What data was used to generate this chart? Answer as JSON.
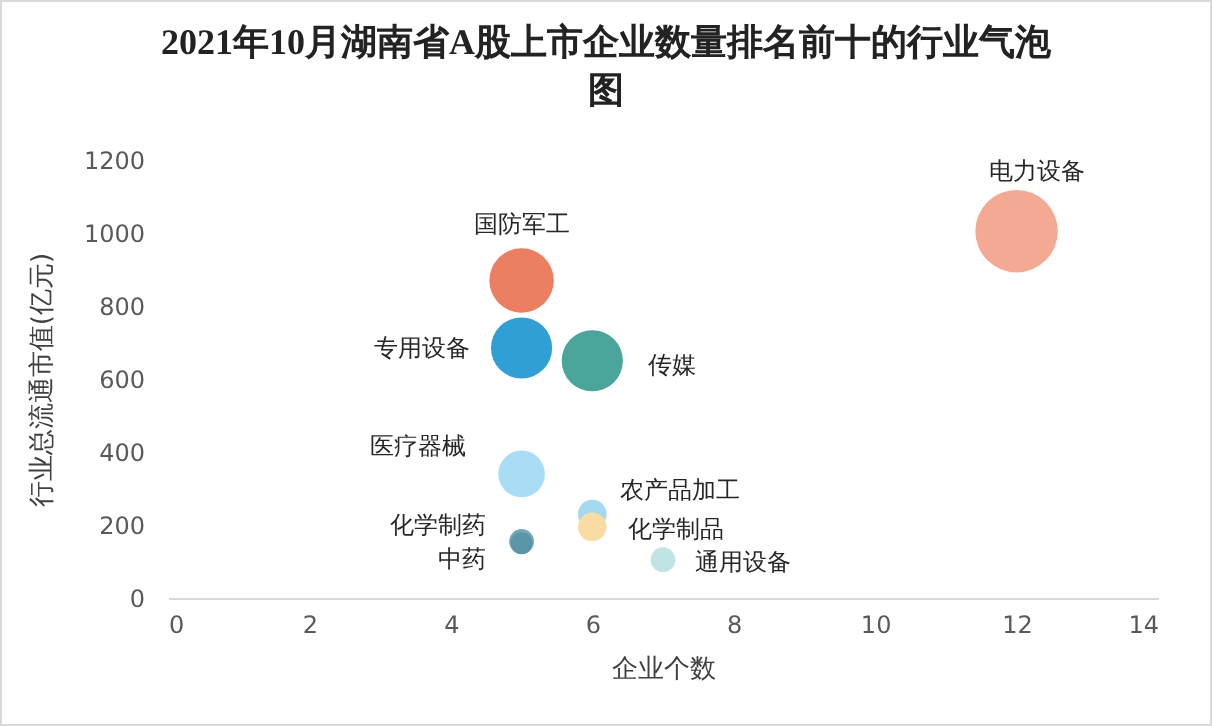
{
  "chart_data": {
    "type": "bubble",
    "title": "2021年10月湖南省A股上市企业数量排名前十的行业气泡图",
    "xlabel": "企业个数",
    "ylabel": "行业总流通市值(亿元)",
    "xlim": [
      0,
      14
    ],
    "xticks": [
      0,
      2,
      4,
      6,
      8,
      10,
      12,
      14
    ],
    "ylim": [
      0,
      1200
    ],
    "yticks": [
      0,
      200,
      400,
      600,
      800,
      1000,
      1200
    ],
    "legend": false,
    "grid": false,
    "series": [
      {
        "name": "电力设备",
        "color": "#f4aa92",
        "x": [
          12
        ],
        "values": [
          1005
        ],
        "sizes": [
          1
        ]
      },
      {
        "name": "国防军工",
        "color": "#ec7e62",
        "x": [
          5
        ],
        "values": [
          870
        ],
        "sizes": [
          0.61
        ]
      },
      {
        "name": "专用设备",
        "color": "#2f9fd5",
        "x": [
          5
        ],
        "values": [
          685
        ],
        "sizes": [
          0.55
        ]
      },
      {
        "name": "传媒",
        "color": "#4aa59a",
        "x": [
          6
        ],
        "values": [
          650
        ],
        "sizes": [
          0.55
        ]
      },
      {
        "name": "医疗器械",
        "color": "#a9ddf5",
        "x": [
          5
        ],
        "values": [
          340
        ],
        "sizes": [
          0.32
        ]
      },
      {
        "name": "农产品加工",
        "color": "#a3d9f1",
        "x": [
          6
        ],
        "values": [
          230
        ],
        "sizes": [
          0.12
        ]
      },
      {
        "name": "化学制品",
        "color": "#f8dca2",
        "x": [
          6
        ],
        "values": [
          195
        ],
        "sizes": [
          0.12
        ]
      },
      {
        "name": "化学制药",
        "color": "#6fa9b8",
        "x": [
          5
        ],
        "values": [
          155
        ],
        "sizes": [
          0.09
        ]
      },
      {
        "name": "中药",
        "color": "#5a95a8",
        "x": [
          5
        ],
        "values": [
          150
        ],
        "sizes": [
          0.07
        ]
      },
      {
        "name": "通用设备",
        "color": "#bfe4e2",
        "x": [
          7
        ],
        "values": [
          105
        ],
        "sizes": [
          0.09
        ]
      }
    ]
  }
}
